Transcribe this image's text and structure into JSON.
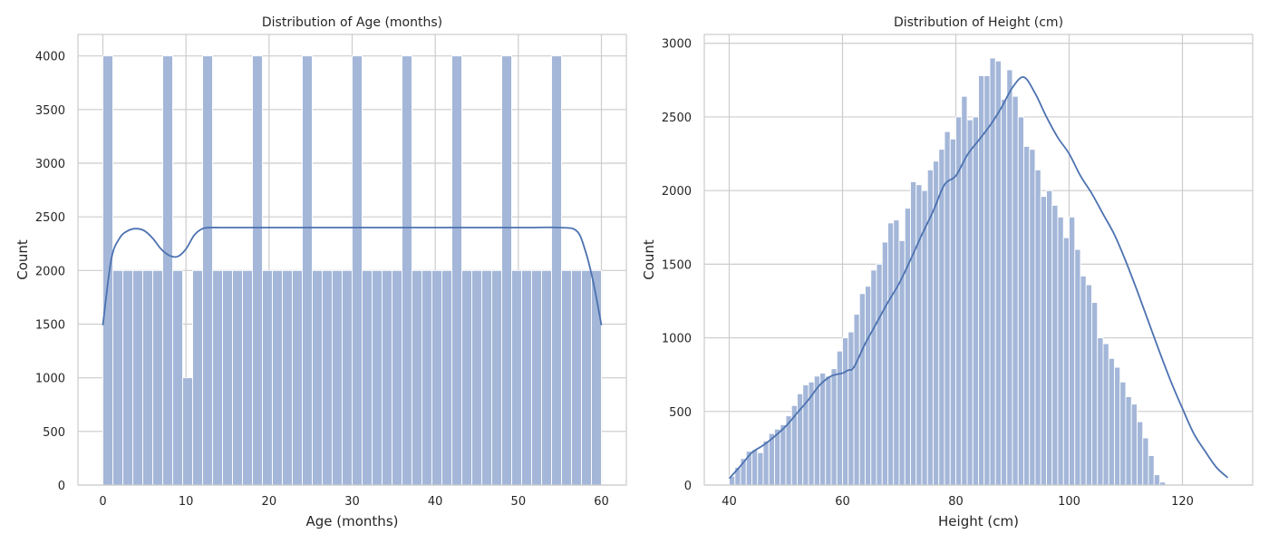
{
  "chart_data": [
    {
      "type": "bar",
      "title": "Distribution of Age (months)",
      "xlabel": "Age (months)",
      "ylabel": "Count",
      "xlim": [
        -3,
        63
      ],
      "ylim": [
        0,
        4200
      ],
      "xticks": [
        0,
        10,
        20,
        30,
        40,
        50,
        60
      ],
      "yticks": [
        0,
        500,
        1000,
        1500,
        2000,
        2500,
        3000,
        3500,
        4000
      ],
      "grid": true,
      "bin_start": 0,
      "bin_width": 1.2,
      "values": [
        4000,
        2000,
        2000,
        2000,
        2000,
        2000,
        4000,
        2000,
        1000,
        2000,
        4000,
        2000,
        2000,
        2000,
        2000,
        4000,
        2000,
        2000,
        2000,
        2000,
        4000,
        2000,
        2000,
        2000,
        2000,
        4000,
        2000,
        2000,
        2000,
        2000,
        4000,
        2000,
        2000,
        2000,
        2000,
        4000,
        2000,
        2000,
        2000,
        2000,
        4000,
        2000,
        2000,
        2000,
        2000,
        4000,
        2000,
        2000,
        2000,
        2000
      ],
      "kde": {
        "x": [
          0,
          1,
          2,
          3,
          4,
          5,
          6,
          7,
          8,
          9,
          10,
          11,
          12,
          13,
          14,
          15,
          20,
          30,
          40,
          50,
          55,
          57,
          58,
          59,
          60
        ],
        "y": [
          1490,
          2100,
          2300,
          2370,
          2390,
          2370,
          2300,
          2200,
          2140,
          2130,
          2200,
          2330,
          2390,
          2400,
          2400,
          2400,
          2400,
          2400,
          2400,
          2400,
          2400,
          2370,
          2200,
          1900,
          1490
        ]
      }
    },
    {
      "type": "bar",
      "title": "Distribution of Height (cm)",
      "xlabel": "Height (cm)",
      "ylabel": "Count",
      "xlim": [
        35.6,
        132.4
      ],
      "ylim": [
        0,
        3060
      ],
      "xticks": [
        40,
        60,
        80,
        100,
        120
      ],
      "yticks": [
        0,
        500,
        1000,
        1500,
        2000,
        2500,
        3000
      ],
      "grid": true,
      "bin_start": 40,
      "bin_width": 1.0,
      "values": [
        60,
        120,
        180,
        230,
        240,
        220,
        300,
        350,
        380,
        410,
        470,
        540,
        620,
        680,
        700,
        740,
        760,
        740,
        790,
        910,
        1000,
        1040,
        1160,
        1300,
        1350,
        1460,
        1500,
        1650,
        1780,
        1800,
        1660,
        1880,
        2060,
        2040,
        2000,
        2140,
        2200,
        2280,
        2400,
        2350,
        2500,
        2640,
        2480,
        2500,
        2780,
        2780,
        2900,
        2880,
        2620,
        2820,
        2640,
        2500,
        2300,
        2280,
        2140,
        1960,
        2000,
        1900,
        1820,
        1680,
        1820,
        1600,
        1420,
        1360,
        1240,
        1000,
        960,
        860,
        800,
        700,
        600,
        550,
        430,
        320,
        200,
        70,
        20
      ],
      "kde": {
        "x": [
          40,
          42,
          44,
          46,
          48,
          50,
          52,
          54,
          56,
          58,
          60,
          61,
          62,
          64,
          66,
          68,
          70,
          72,
          74,
          76,
          78,
          80,
          82,
          84,
          86,
          88,
          90,
          92,
          94,
          96,
          98,
          100,
          102,
          104,
          106,
          108,
          110,
          112,
          114,
          116,
          118,
          120,
          122,
          124,
          126,
          128
        ],
        "y": [
          45,
          130,
          220,
          270,
          330,
          400,
          490,
          580,
          680,
          740,
          760,
          780,
          800,
          960,
          1100,
          1240,
          1370,
          1530,
          1700,
          1860,
          2040,
          2100,
          2240,
          2340,
          2440,
          2560,
          2700,
          2770,
          2660,
          2500,
          2360,
          2250,
          2100,
          1980,
          1840,
          1700,
          1520,
          1320,
          1110,
          900,
          700,
          520,
          350,
          230,
          120,
          50
        ]
      }
    }
  ]
}
